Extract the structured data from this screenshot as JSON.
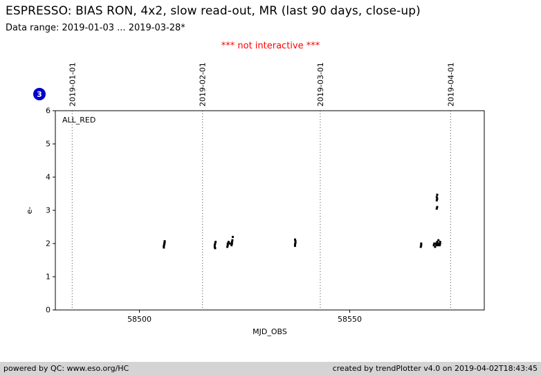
{
  "header": {
    "title": "ESPRESSO: BIAS RON, 4x2, slow read-out, MR (last 90 days, close-up)",
    "subtitle": "Data range: 2019-01-03 ... 2019-03-28*",
    "notice": "*** not interactive ***",
    "notice_color": "#ff0000"
  },
  "badge": {
    "label": "3",
    "color": "#0000cc"
  },
  "chart_data": {
    "type": "scatter",
    "title": "",
    "legend": "ALL_RED",
    "xlabel": "MJD_OBS",
    "ylabel": "e-",
    "xlim": [
      58480,
      58582
    ],
    "ylim": [
      0,
      6
    ],
    "x_ticks": [
      58500,
      58550
    ],
    "y_ticks": [
      0,
      1,
      2,
      3,
      4,
      5,
      6
    ],
    "grid": "vertical dotted lines at month boundaries",
    "legend_position": "top-left-inside",
    "marker_color": "#000000",
    "date_lines": [
      {
        "label": "2019-01-01",
        "mjd": 58484
      },
      {
        "label": "2019-02-01",
        "mjd": 58515
      },
      {
        "label": "2019-03-01",
        "mjd": 58543
      },
      {
        "label": "2019-04-01",
        "mjd": 58574
      }
    ],
    "series": [
      {
        "name": "ALL_RED",
        "marker": "square",
        "color": "#000000",
        "points": [
          [
            58505.8,
            1.88
          ],
          [
            58505.8,
            1.93
          ],
          [
            58505.9,
            1.97
          ],
          [
            58505.9,
            2.0
          ],
          [
            58506.0,
            2.03
          ],
          [
            58506.0,
            2.07
          ],
          [
            58517.9,
            1.9
          ],
          [
            58517.9,
            1.95
          ],
          [
            58518.0,
            2.0
          ],
          [
            58518.0,
            1.86
          ],
          [
            58518.1,
            2.05
          ],
          [
            58520.9,
            1.9
          ],
          [
            58521.0,
            1.95
          ],
          [
            58521.0,
            2.0
          ],
          [
            58521.2,
            2.05
          ],
          [
            58521.5,
            2.0
          ],
          [
            58521.9,
            1.95
          ],
          [
            58522.0,
            2.0
          ],
          [
            58522.0,
            2.05
          ],
          [
            58522.1,
            2.1
          ],
          [
            58522.2,
            2.2
          ],
          [
            58537.0,
            1.93
          ],
          [
            58537.0,
            1.98
          ],
          [
            58537.1,
            2.02
          ],
          [
            58537.1,
            2.07
          ],
          [
            58537.0,
            2.12
          ],
          [
            58566.9,
            1.9
          ],
          [
            58567.0,
            1.95
          ],
          [
            58567.0,
            2.0
          ],
          [
            58570.0,
            1.95
          ],
          [
            58570.1,
            2.0
          ],
          [
            58570.3,
            1.9
          ],
          [
            58570.5,
            2.0
          ],
          [
            58570.6,
            1.95
          ],
          [
            58570.8,
            2.05
          ],
          [
            58571.0,
            1.95
          ],
          [
            58571.0,
            2.0
          ],
          [
            58571.1,
            2.1
          ],
          [
            58571.3,
            2.0
          ],
          [
            58571.4,
            1.95
          ],
          [
            58571.5,
            2.05
          ],
          [
            58571.5,
            2.0
          ],
          [
            58570.7,
            3.05
          ],
          [
            58570.8,
            3.1
          ],
          [
            58570.7,
            3.3
          ],
          [
            58570.8,
            3.35
          ],
          [
            58570.7,
            3.4
          ],
          [
            58570.8,
            3.47
          ]
        ]
      }
    ]
  },
  "footer": {
    "left": "powered by QC: www.eso.org/HC",
    "right": "created by trendPlotter v4.0 on 2019-04-02T18:43:45",
    "background": "#d4d4d4"
  }
}
